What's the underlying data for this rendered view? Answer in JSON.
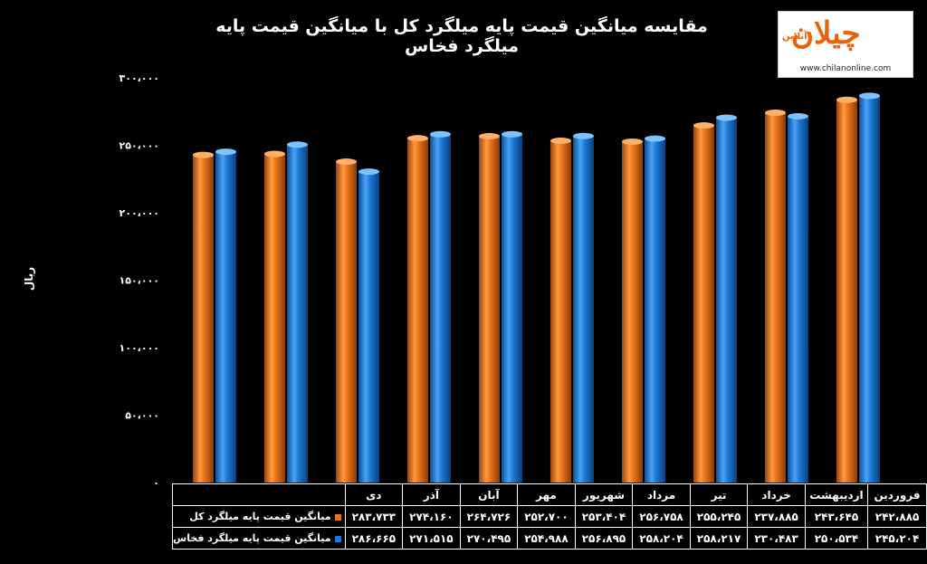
{
  "title": "مقایسه میانگین قیمت پایه میلگرد کل با میانگین قیمت پایه میلگرد فخاس",
  "logo": {
    "name": "چیلان",
    "sub": "آنلاین",
    "url": "www.chilanonline.com"
  },
  "chart_data": {
    "type": "bar",
    "title": "مقایسه میانگین قیمت پایه میلگرد کل با میانگین قیمت پایه میلگرد فخاس",
    "ylabel": "ریال",
    "ylim": [
      0,
      300000
    ],
    "yticks": [
      0,
      50000,
      100000,
      150000,
      200000,
      250000,
      300000
    ],
    "ytick_labels": [
      "۰",
      "۵۰،۰۰۰",
      "۱۰۰،۰۰۰",
      "۱۵۰،۰۰۰",
      "۲۰۰،۰۰۰",
      "۲۵۰،۰۰۰",
      "۳۰۰،۰۰۰"
    ],
    "categories": [
      "فروردین",
      "اردیبهشت",
      "خرداد",
      "تیر",
      "مرداد",
      "شهریور",
      "مهر",
      "آبان",
      "آذر",
      "دی"
    ],
    "series": [
      {
        "name": "میانگین قیمت پایه میلگرد کل",
        "color": "#E8751A",
        "values": [
          242885,
          243645,
          237885,
          255245,
          256758,
          253404,
          252700,
          264726,
          274160,
          283733
        ],
        "labels": [
          "۲۴۲،۸۸۵",
          "۲۴۳،۶۴۵",
          "۲۳۷،۸۸۵",
          "۲۵۵،۲۴۵",
          "۲۵۶،۷۵۸",
          "۲۵۳،۴۰۴",
          "۲۵۲،۷۰۰",
          "۲۶۴،۷۲۶",
          "۲۷۴،۱۶۰",
          "۲۸۳،۷۳۳"
        ]
      },
      {
        "name": "میانگین قیمت پایه میلگرد فخاس",
        "color": "#1E7BD8",
        "values": [
          245204,
          250534,
          230483,
          258217,
          258204,
          256895,
          254988,
          270495,
          271515,
          286665
        ],
        "labels": [
          "۲۴۵،۲۰۴",
          "۲۵۰،۵۳۴",
          "۲۳۰،۴۸۳",
          "۲۵۸،۲۱۷",
          "۲۵۸،۲۰۴",
          "۲۵۶،۸۹۵",
          "۲۵۴،۹۸۸",
          "۲۷۰،۴۹۵",
          "۲۷۱،۵۱۵",
          "۲۸۶،۶۶۵"
        ]
      }
    ],
    "grid": false,
    "legend": "table-below"
  }
}
